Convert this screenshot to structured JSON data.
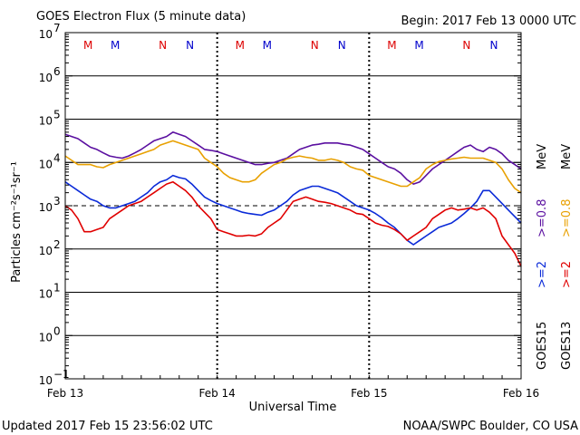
{
  "chart_data": {
    "type": "line",
    "title": "GOES Electron Flux (5 minute data)",
    "begin_label": "Begin: 2017 Feb 13 0000 UTC",
    "xlabel": "Universal Time",
    "ylabel": "Particles cm⁻²s⁻¹sr⁻¹",
    "updated": "Updated 2017 Feb 15 23:56:02 UTC",
    "credit": "NOAA/SWPC Boulder, CO USA",
    "x_ticks": [
      {
        "t": 0,
        "label": "Feb 13"
      },
      {
        "t": 24,
        "label": "Feb 14"
      },
      {
        "t": 48,
        "label": "Feb 15"
      },
      {
        "t": 72,
        "label": "Feb 16"
      }
    ],
    "xlim": [
      0,
      72
    ],
    "y_scale": "log",
    "ylim_exp": [
      -1,
      7
    ],
    "y_ticks": [
      {
        "exp": 7,
        "label": "10",
        "sup": "7"
      },
      {
        "exp": 6,
        "label": "10",
        "sup": "6"
      },
      {
        "exp": 5,
        "label": "10",
        "sup": "5"
      },
      {
        "exp": 4,
        "label": "10",
        "sup": "4"
      },
      {
        "exp": 3,
        "label": "10",
        "sup": "3"
      },
      {
        "exp": 2,
        "label": "10",
        "sup": "2"
      },
      {
        "exp": 1,
        "label": "10",
        "sup": "1"
      },
      {
        "exp": 0,
        "label": "10",
        "sup": "0"
      },
      {
        "exp": -1,
        "label": "10",
        "sup": "−1"
      }
    ],
    "solid_grid_exp": [
      6,
      5,
      4,
      2,
      1,
      0
    ],
    "dashed_threshold_exp": 3,
    "grid": true,
    "markers": [
      {
        "t": 3.6,
        "label": "M",
        "color": "#dd0000"
      },
      {
        "t": 7.9,
        "label": "M",
        "color": "#0000cc"
      },
      {
        "t": 15.4,
        "label": "N",
        "color": "#dd0000"
      },
      {
        "t": 19.7,
        "label": "N",
        "color": "#0000cc"
      },
      {
        "t": 27.6,
        "label": "M",
        "color": "#dd0000"
      },
      {
        "t": 31.9,
        "label": "M",
        "color": "#0000cc"
      },
      {
        "t": 39.4,
        "label": "N",
        "color": "#dd0000"
      },
      {
        "t": 43.7,
        "label": "N",
        "color": "#0000cc"
      },
      {
        "t": 51.6,
        "label": "M",
        "color": "#dd0000"
      },
      {
        "t": 55.9,
        "label": "M",
        "color": "#0000cc"
      },
      {
        "t": 63.4,
        "label": "N",
        "color": "#dd0000"
      },
      {
        "t": 67.7,
        "label": "N",
        "color": "#0000cc"
      }
    ],
    "legend": {
      "goes15": "GOES15",
      "goes13": "GOES13",
      "ge2": ">=2",
      "ge08": ">=0.8",
      "mev": "MeV"
    },
    "series": [
      {
        "key": "g15_ge08",
        "color": "#5a0fa0",
        "x": [
          0,
          1,
          2,
          3,
          4,
          5,
          6,
          7,
          8,
          9,
          10,
          11,
          12,
          13,
          14,
          15,
          16,
          17,
          18,
          19,
          20,
          21,
          22,
          23,
          24,
          25,
          26,
          27,
          28,
          29,
          30,
          31,
          32,
          33,
          34,
          35,
          36,
          37,
          38,
          39,
          40,
          41,
          42,
          43,
          44,
          45,
          46,
          47,
          48,
          49,
          50,
          51,
          52,
          53,
          54,
          55,
          56,
          57,
          58,
          59,
          60,
          61,
          62,
          63,
          64,
          65,
          66,
          67,
          68,
          69,
          70,
          71,
          72
        ],
        "logy": [
          4.65,
          4.6,
          4.55,
          4.45,
          4.35,
          4.3,
          4.22,
          4.15,
          4.12,
          4.1,
          4.15,
          4.22,
          4.3,
          4.4,
          4.5,
          4.55,
          4.6,
          4.7,
          4.65,
          4.6,
          4.5,
          4.4,
          4.3,
          4.28,
          4.25,
          4.2,
          4.15,
          4.1,
          4.05,
          4.0,
          3.95,
          3.95,
          3.98,
          4.0,
          4.05,
          4.1,
          4.2,
          4.3,
          4.35,
          4.4,
          4.42,
          4.45,
          4.45,
          4.45,
          4.42,
          4.4,
          4.35,
          4.3,
          4.2,
          4.1,
          4.0,
          3.9,
          3.85,
          3.75,
          3.6,
          3.5,
          3.55,
          3.7,
          3.85,
          3.95,
          4.05,
          4.15,
          4.25,
          4.35,
          4.4,
          4.3,
          4.25,
          4.35,
          4.3,
          4.2,
          4.05,
          3.95,
          3.85
        ]
      },
      {
        "key": "g13_ge08",
        "color": "#e8a000",
        "x": [
          0,
          1,
          2,
          3,
          4,
          5,
          6,
          7,
          8,
          9,
          10,
          11,
          12,
          13,
          14,
          15,
          16,
          17,
          18,
          19,
          20,
          21,
          22,
          23,
          24,
          25,
          26,
          27,
          28,
          29,
          30,
          31,
          32,
          33,
          34,
          35,
          36,
          37,
          38,
          39,
          40,
          41,
          42,
          43,
          44,
          45,
          46,
          47,
          48,
          49,
          50,
          51,
          52,
          53,
          54,
          55,
          56,
          57,
          58,
          59,
          60,
          61,
          62,
          63,
          64,
          65,
          66,
          67,
          68,
          69,
          70,
          71,
          72
        ],
        "logy": [
          4.15,
          4.05,
          3.95,
          3.95,
          3.95,
          3.9,
          3.88,
          3.95,
          4.0,
          4.05,
          4.1,
          4.15,
          4.2,
          4.25,
          4.3,
          4.4,
          4.45,
          4.5,
          4.45,
          4.4,
          4.35,
          4.3,
          4.1,
          4.0,
          3.9,
          3.75,
          3.65,
          3.6,
          3.55,
          3.55,
          3.6,
          3.75,
          3.85,
          3.95,
          4.0,
          4.08,
          4.12,
          4.15,
          4.12,
          4.1,
          4.05,
          4.05,
          4.08,
          4.05,
          4.0,
          3.9,
          3.85,
          3.82,
          3.7,
          3.65,
          3.6,
          3.55,
          3.5,
          3.45,
          3.45,
          3.55,
          3.65,
          3.85,
          3.95,
          4.02,
          4.05,
          4.08,
          4.1,
          4.12,
          4.1,
          4.1,
          4.1,
          4.05,
          4.0,
          3.85,
          3.6,
          3.4,
          3.3
        ]
      },
      {
        "key": "g15_ge2",
        "color": "#0a2ad8",
        "x": [
          0,
          1,
          2,
          3,
          4,
          5,
          6,
          7,
          8,
          9,
          10,
          11,
          12,
          13,
          14,
          15,
          16,
          17,
          18,
          19,
          20,
          21,
          22,
          23,
          24,
          25,
          26,
          27,
          28,
          29,
          30,
          31,
          32,
          33,
          34,
          35,
          36,
          37,
          38,
          39,
          40,
          41,
          42,
          43,
          44,
          45,
          46,
          47,
          48,
          49,
          50,
          51,
          52,
          53,
          54,
          55,
          56,
          57,
          58,
          59,
          60,
          61,
          62,
          63,
          64,
          65,
          66,
          67,
          68,
          69,
          70,
          71,
          72
        ],
        "logy": [
          3.55,
          3.45,
          3.35,
          3.25,
          3.15,
          3.1,
          3.0,
          2.95,
          2.95,
          3.0,
          3.05,
          3.1,
          3.2,
          3.3,
          3.45,
          3.55,
          3.6,
          3.7,
          3.65,
          3.62,
          3.5,
          3.35,
          3.2,
          3.12,
          3.05,
          3.0,
          2.95,
          2.9,
          2.85,
          2.82,
          2.8,
          2.78,
          2.85,
          2.9,
          3.0,
          3.1,
          3.25,
          3.35,
          3.4,
          3.45,
          3.45,
          3.4,
          3.35,
          3.3,
          3.2,
          3.1,
          3.0,
          2.95,
          2.9,
          2.82,
          2.72,
          2.6,
          2.5,
          2.35,
          2.2,
          2.1,
          2.2,
          2.3,
          2.4,
          2.5,
          2.55,
          2.6,
          2.7,
          2.82,
          2.95,
          3.1,
          3.35,
          3.35,
          3.2,
          3.05,
          2.9,
          2.75,
          2.6
        ]
      },
      {
        "key": "g13_ge2",
        "color": "#e00000",
        "x": [
          0,
          1,
          2,
          3,
          4,
          5,
          6,
          7,
          8,
          9,
          10,
          11,
          12,
          13,
          14,
          15,
          16,
          17,
          18,
          19,
          20,
          21,
          22,
          23,
          24,
          25,
          26,
          27,
          28,
          29,
          30,
          31,
          32,
          33,
          34,
          35,
          36,
          37,
          38,
          39,
          40,
          41,
          42,
          43,
          44,
          45,
          46,
          47,
          48,
          49,
          50,
          51,
          52,
          53,
          54,
          55,
          56,
          57,
          58,
          59,
          60,
          61,
          62,
          63,
          64,
          65,
          66,
          67,
          68,
          69,
          70,
          71,
          72
        ],
        "logy": [
          3.0,
          2.9,
          2.7,
          2.4,
          2.4,
          2.45,
          2.5,
          2.7,
          2.8,
          2.9,
          3.0,
          3.05,
          3.1,
          3.2,
          3.3,
          3.4,
          3.5,
          3.55,
          3.45,
          3.35,
          3.2,
          3.0,
          2.85,
          2.7,
          2.45,
          2.4,
          2.35,
          2.3,
          2.3,
          2.32,
          2.3,
          2.35,
          2.5,
          2.6,
          2.7,
          2.9,
          3.1,
          3.15,
          3.2,
          3.15,
          3.1,
          3.08,
          3.05,
          3.0,
          2.95,
          2.9,
          2.82,
          2.8,
          2.7,
          2.6,
          2.55,
          2.52,
          2.45,
          2.35,
          2.2,
          2.3,
          2.4,
          2.5,
          2.7,
          2.8,
          2.9,
          2.95,
          2.9,
          2.92,
          2.95,
          2.9,
          2.95,
          2.85,
          2.7,
          2.3,
          2.1,
          1.9,
          1.6
        ]
      }
    ]
  }
}
